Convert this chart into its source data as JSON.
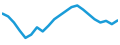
{
  "x": [
    0,
    1,
    2,
    3,
    4,
    5,
    6,
    7,
    8,
    9,
    10,
    11,
    12,
    13,
    14,
    15,
    16,
    17,
    18,
    19,
    20
  ],
  "y": [
    0.72,
    0.65,
    0.5,
    0.3,
    0.12,
    0.2,
    0.38,
    0.28,
    0.42,
    0.58,
    0.68,
    0.78,
    0.88,
    0.92,
    0.82,
    0.7,
    0.58,
    0.5,
    0.54,
    0.46,
    0.55
  ],
  "line_color": "#1a9cd8",
  "line_width": 1.8,
  "background_color": "#ffffff",
  "ylim_min": 0.0,
  "ylim_max": 1.0,
  "xlim_min": 0,
  "xlim_max": 20
}
